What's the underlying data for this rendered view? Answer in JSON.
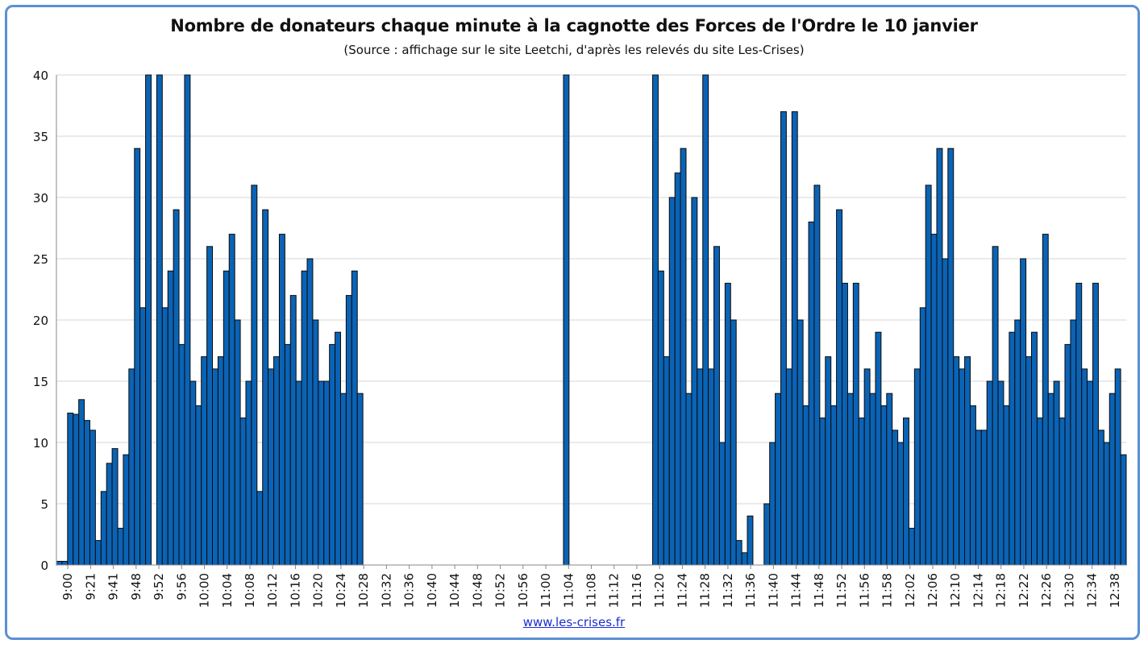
{
  "chart_data": {
    "type": "bar",
    "title": "Nombre de donateurs chaque minute à la cagnotte des Forces de l'Ordre le 10 janvier",
    "subtitle": "(Source : affichage sur le site Leetchi, d'après les relevés du site Les-Crises)",
    "credit": "www.les-crises.fr",
    "xlabel": "",
    "ylabel": "",
    "ylim": [
      0,
      40
    ],
    "yticks": [
      0,
      5,
      10,
      15,
      20,
      25,
      30,
      35,
      40
    ],
    "grid": true,
    "legend": "none",
    "bar_color": "#0a63b5",
    "x_tick_labels": [
      "9:00",
      "9:21",
      "9:41",
      "9:48",
      "9:52",
      "9:56",
      "10:00",
      "10:04",
      "10:08",
      "10:12",
      "10:16",
      "10:20",
      "10:24",
      "10:28",
      "10:32",
      "10:36",
      "10:40",
      "10:44",
      "10:48",
      "10:52",
      "10:56",
      "11:00",
      "11:04",
      "11:08",
      "11:12",
      "11:16",
      "11:20",
      "11:24",
      "11:28",
      "11:32",
      "11:36",
      "11:40",
      "11:44",
      "11:48",
      "11:52",
      "11:56",
      "11:58",
      "12:02",
      "12:06",
      "12:10",
      "12:14",
      "12:18",
      "12:22",
      "12:26",
      "12:30",
      "12:34",
      "12:38"
    ],
    "values": [
      0.3,
      0.3,
      12.4,
      12.3,
      13.5,
      11.8,
      11,
      2,
      6,
      8.3,
      9.5,
      3,
      9,
      16,
      34,
      21,
      40,
      0,
      40,
      21,
      24,
      29,
      18,
      40,
      15,
      13,
      17,
      26,
      16,
      17,
      24,
      27,
      20,
      12,
      15,
      31,
      6,
      29,
      16,
      17,
      27,
      18,
      22,
      15,
      24,
      25,
      20,
      15,
      15,
      18,
      19,
      14,
      22,
      24,
      14,
      0,
      0,
      0,
      0,
      0,
      0,
      0,
      0,
      0,
      0,
      0,
      0,
      0,
      0,
      0,
      0,
      0,
      0,
      0,
      0,
      0,
      0,
      0,
      0,
      0,
      0,
      0,
      0,
      0,
      0,
      0,
      0,
      0,
      0,
      0,
      0,
      40,
      0,
      0,
      0,
      0,
      0,
      0,
      0,
      0,
      0,
      0,
      0,
      0,
      0,
      0,
      0,
      40,
      24,
      17,
      30,
      32,
      34,
      14,
      30,
      16,
      40,
      16,
      26,
      10,
      23,
      20,
      2,
      1,
      4,
      0,
      0,
      5,
      10,
      14,
      37,
      16,
      37,
      20,
      13,
      28,
      31,
      12,
      17,
      13,
      29,
      23,
      14,
      23,
      12,
      16,
      14,
      19,
      13,
      14,
      11,
      10,
      12,
      3,
      16,
      21,
      31,
      27,
      34,
      25,
      34,
      17,
      16,
      17,
      13,
      11,
      11,
      15,
      26,
      15,
      13,
      19,
      20,
      25,
      17,
      19,
      12,
      27,
      14,
      15,
      12,
      18,
      20,
      23,
      16,
      15,
      23,
      11,
      10,
      14,
      16,
      9
    ]
  }
}
